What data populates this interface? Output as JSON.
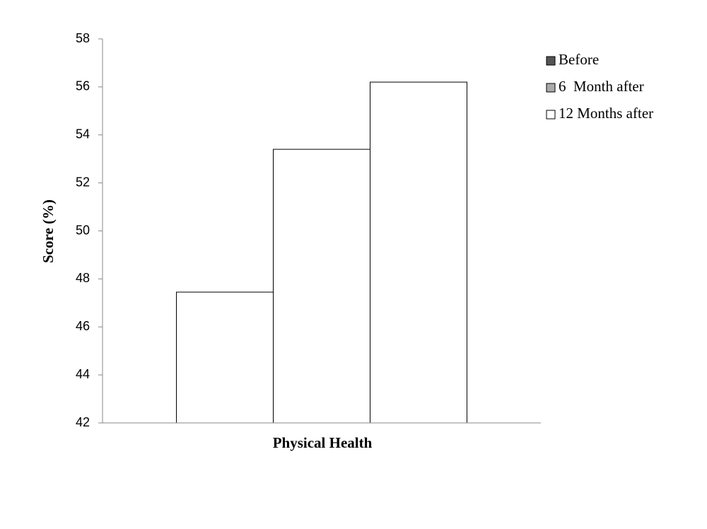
{
  "chart_data": {
    "type": "bar",
    "categories": [
      "Physical Health"
    ],
    "ylabel": "Score (%)",
    "series": [
      {
        "name": "Before",
        "color": "#555555",
        "values": [
          47.45
        ]
      },
      {
        "name": "6  Month after",
        "color": "#aaaaaa",
        "values": [
          53.4
        ]
      },
      {
        "name": "12 Months after",
        "color": "#ffffff",
        "values": [
          56.2
        ]
      }
    ],
    "bar_color": "#ffffff",
    "ylim": [
      42,
      58
    ],
    "yticks": [
      42,
      44,
      46,
      48,
      50,
      52,
      54,
      56,
      58
    ],
    "grid": false,
    "legend": "right"
  }
}
